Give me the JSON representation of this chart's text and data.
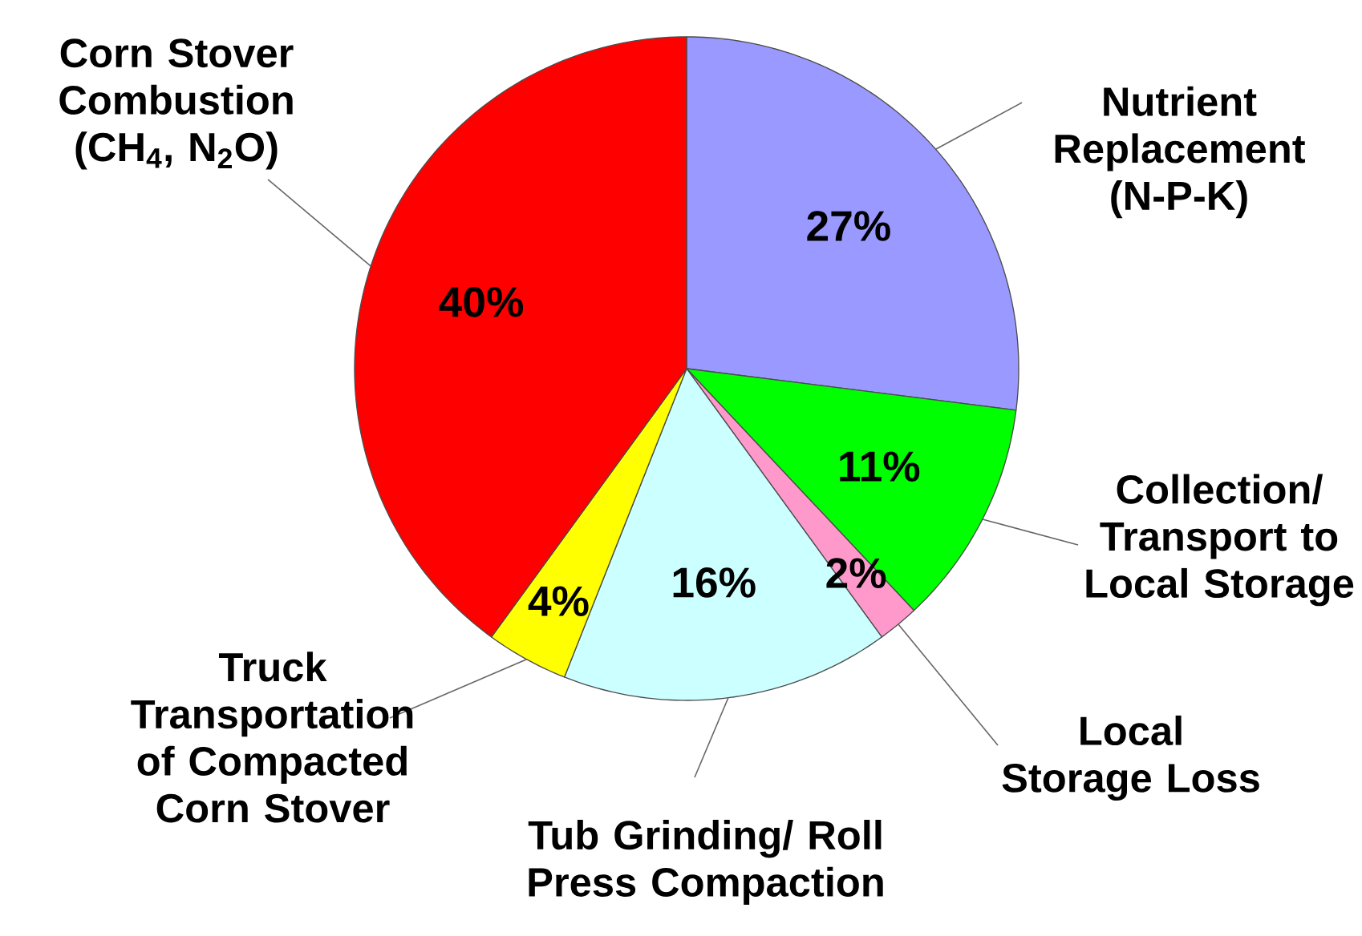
{
  "chart_data": {
    "type": "pie",
    "categories": [
      "Nutrient Replacement (N-P-K)",
      "Collection/ Transport to Local Storage",
      "Local Storage Loss",
      "Tub Grinding/ Roll Press Compaction",
      "Truck Transportation of Compacted Corn Stover",
      "Corn Stover Combustion (CH$_{4}$, N$_{2}$O)"
    ],
    "values": [
      27,
      11,
      2,
      16,
      4,
      40
    ],
    "value_labels": [
      "27%",
      "11%",
      "2%",
      "16%",
      "4%",
      "40%"
    ],
    "colors": [
      "#9999ff",
      "#00ff00",
      "#ff99cc",
      "#ccffff",
      "#ffff00",
      "#ff0000"
    ]
  }
}
